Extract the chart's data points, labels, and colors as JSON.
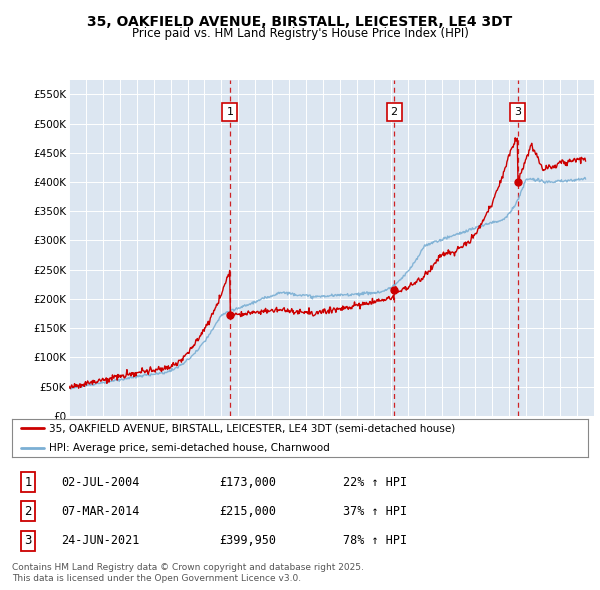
{
  "title": "35, OAKFIELD AVENUE, BIRSTALL, LEICESTER, LE4 3DT",
  "subtitle": "Price paid vs. HM Land Registry's House Price Index (HPI)",
  "bg_color": "#dce6f1",
  "sale_color": "#cc0000",
  "hpi_color": "#7bafd4",
  "ylim": [
    0,
    575000
  ],
  "yticks": [
    0,
    50000,
    100000,
    150000,
    200000,
    250000,
    300000,
    350000,
    400000,
    450000,
    500000,
    550000
  ],
  "sale_dates": [
    2004.5,
    2014.2,
    2021.5
  ],
  "sale_labels": [
    "1",
    "2",
    "3"
  ],
  "sale_prices": [
    173000,
    215000,
    399950
  ],
  "transaction_info": [
    {
      "label": "1",
      "date": "02-JUL-2004",
      "price": "£173,000",
      "hpi": "22% ↑ HPI"
    },
    {
      "label": "2",
      "date": "07-MAR-2014",
      "price": "£215,000",
      "hpi": "37% ↑ HPI"
    },
    {
      "label": "3",
      "date": "24-JUN-2021",
      "price": "£399,950",
      "hpi": "78% ↑ HPI"
    }
  ],
  "legend_entries": [
    "35, OAKFIELD AVENUE, BIRSTALL, LEICESTER, LE4 3DT (semi-detached house)",
    "HPI: Average price, semi-detached house, Charnwood"
  ],
  "footer": "Contains HM Land Registry data © Crown copyright and database right 2025.\nThis data is licensed under the Open Government Licence v3.0.",
  "xmin": 1995,
  "xmax": 2026
}
